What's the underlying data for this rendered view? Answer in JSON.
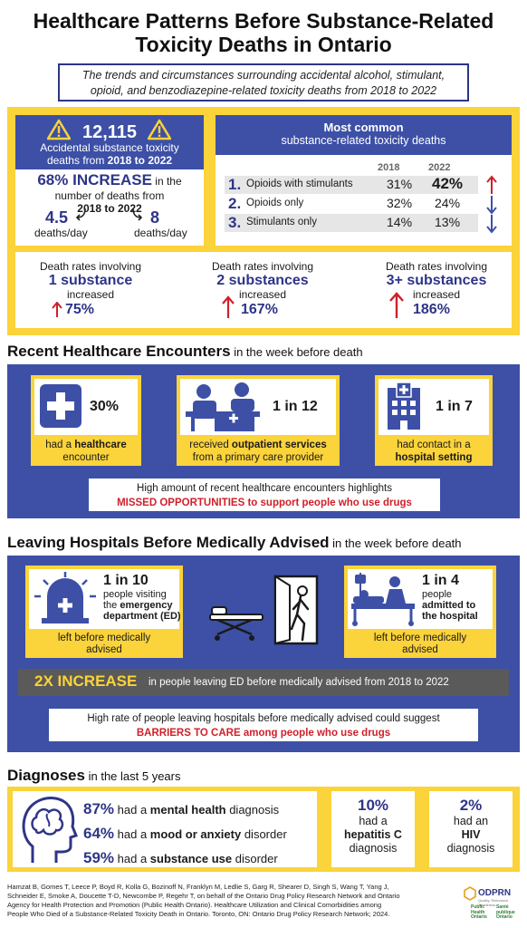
{
  "header": {
    "title_line1": "Healthcare Patterns Before Substance-Related",
    "title_line2": "Toxicity Deaths in Ontario",
    "subtitle_line1": "The trends and circumstances surrounding accidental alcohol, stimulant,",
    "subtitle_line2": "opioid, and benzodiazepine-related toxicity deaths from 2018 to 2022"
  },
  "summary": {
    "total": "12,115",
    "total_label1": "Accidental substance toxicity",
    "total_label2_pre": "deaths from ",
    "total_label2_bold": "2018 to 2022",
    "increase_big": "68% INCREASE",
    "increase_rest": " in the",
    "increase_line2": "number of deaths from",
    "increase_line3": "2018 to 2022",
    "rate_2018": "4.5",
    "rate_2022": "8",
    "per_day": "deaths/day"
  },
  "most_common": {
    "heading1": "Most common",
    "heading2": "substance-related toxicity deaths",
    "years": [
      "2018",
      "2022"
    ],
    "rows": [
      {
        "num": "1.",
        "label": "Opioids with stimulants",
        "v2018": "31%",
        "v2022": "42%",
        "trend": "up"
      },
      {
        "num": "2.",
        "label": "Opioids only",
        "v2018": "32%",
        "v2022": "24%",
        "trend": "down"
      },
      {
        "num": "3.",
        "label": "Stimulants only",
        "v2018": "14%",
        "v2022": "13%",
        "trend": "down"
      }
    ]
  },
  "death_rates": [
    {
      "pre": "Death rates involving",
      "bold": "1 substance",
      "post": "increased",
      "pct": "75%"
    },
    {
      "pre": "Death rates involving",
      "bold": "2 substances",
      "post": "increased",
      "pct": "167%"
    },
    {
      "pre": "Death rates involving",
      "bold": "3+ substances",
      "post": "increased",
      "pct": "186%"
    }
  ],
  "encounters": {
    "heading": "Recent Healthcare Encounters",
    "heading_rest": " in the week before death",
    "cards": [
      {
        "stat": "30%",
        "pre": "had a ",
        "bold": "healthcare",
        "line2": "encounter"
      },
      {
        "stat": "1 in 12",
        "pre": "received ",
        "bold": "outpatient services",
        "line2": "from a primary care provider"
      },
      {
        "stat": "1 in 7",
        "pre": "had contact in a",
        "bold": "hospital setting",
        "line2": ""
      }
    ],
    "note_line1": "High amount of recent healthcare encounters highlights",
    "note_line2": "MISSED OPPORTUNITIES to support people who use drugs"
  },
  "leaving": {
    "heading": "Leaving Hospitals Before Medically Advised",
    "heading_rest": " in the week before death",
    "ed_stat": "1 in 10",
    "ed_l1": "people visiting",
    "ed_l2_pre": "the ",
    "ed_l2_bold": "emergency",
    "ed_l3": "department (ED)",
    "ed_caption1": "left before medically",
    "ed_caption2": "advised",
    "adm_stat": "1 in 4",
    "adm_l1": "people",
    "adm_l2": "admitted to",
    "adm_l3": "the hospital",
    "adm_caption1": "left before medically",
    "adm_caption2": "advised",
    "increase_big": "2X INCREASE",
    "increase_rest": " in people leaving ED before medically advised from 2018 to 2022",
    "note_line1": "High rate of people leaving hospitals before medically advised could suggest",
    "note_line2": "BARRIERS TO CARE among people who use drugs"
  },
  "diagnoses": {
    "heading": "Diagnoses",
    "heading_rest": " in the last 5 years",
    "items": [
      {
        "pct": "87%",
        "pre": " had a ",
        "bold": "mental health",
        "post": " diagnosis"
      },
      {
        "pct": "64%",
        "pre": " had a ",
        "bold": "mood or anxiety",
        "post": " disorder"
      },
      {
        "pct": "59%",
        "pre": " had a ",
        "bold": "substance use",
        "post": " disorder"
      }
    ],
    "hep_pct": "10%",
    "hep_l1": "had a",
    "hep_l2": "hepatitis C",
    "hep_l3": "diagnosis",
    "hiv_pct": "2%",
    "hiv_l1": "had an",
    "hiv_l2": "HIV",
    "hiv_l3": "diagnosis"
  },
  "footer": {
    "ref_line1": "Hamzat B, Gomes T, Leece P, Boyd R, Kolla G, Bozinoff N, Franklyn M, Ledlie S, Garg R, Shearer D, Singh S, Wang T, Yang J,",
    "ref_line2": "Schneider E, Smoke A, Doucette T-D, Newcombe P, Regehr T, on behalf of the Ontario Drug Policy Research Network and Ontario",
    "ref_line3": "Agency for Health Protection and Promotion (Public Health Ontario). Healthcare Utilization and Clinical Comorbidities among",
    "ref_line4": "People Who Died of a Substance-Related Toxicity Death in Ontario. Toronto, ON: Ontario Drug Policy Research Network; 2024.",
    "odprn": "ODPRN",
    "odprn_tag": "Quality. Relevance. Timeliness.",
    "pho_en1": "Public",
    "pho_en2": "Health",
    "pho_en3": "Ontario",
    "pho_fr1": "Santé",
    "pho_fr2": "publique",
    "pho_fr3": "Ontario"
  },
  "colors": {
    "navy": "#2e3587",
    "blue_panel": "#3d50a6",
    "yellow": "#fbd33a",
    "red": "#d0202a",
    "grey_bar": "#5a5a5a"
  }
}
